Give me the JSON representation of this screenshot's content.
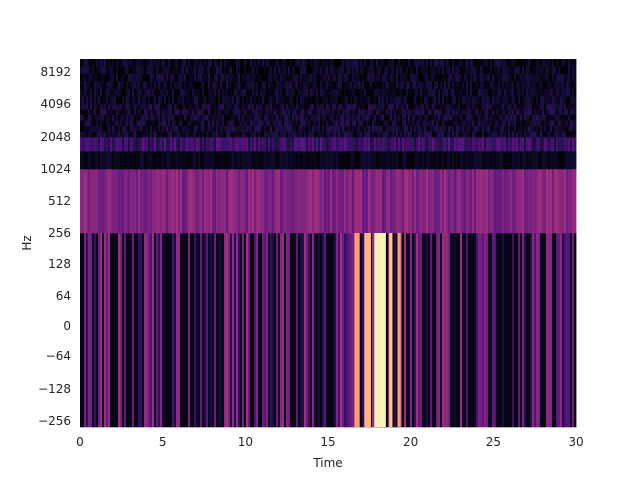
{
  "chart_data": {
    "type": "heatmap",
    "title": "",
    "xlabel": "Time",
    "ylabel": "Hz",
    "xlim": [
      0,
      30
    ],
    "x_ticks": [
      "0",
      "5",
      "10",
      "15",
      "20",
      "25",
      "30"
    ],
    "x_tick_values": [
      0,
      5,
      10,
      15,
      20,
      25,
      30
    ],
    "y_ticks": [
      "−256",
      "−128",
      "−64",
      "0",
      "64",
      "128",
      "256",
      "512",
      "1024",
      "2048",
      "4096",
      "8192"
    ],
    "y_scale": "symlog",
    "colormap": "magma",
    "grid": false,
    "bands": [
      {
        "from": "−256",
        "to": "256",
        "level": 0.25,
        "variability": 0.22
      },
      {
        "from": "256",
        "to": "1024",
        "level": 0.38,
        "variability": 0.08
      },
      {
        "from": "1024",
        "to": "1536",
        "level": 0.05,
        "variability": 0.04
      },
      {
        "from": "1536",
        "to": "2048",
        "level": 0.2,
        "variability": 0.08
      },
      {
        "from": "2048",
        "to": "4096",
        "level": 0.08,
        "variability": 0.08
      },
      {
        "from": "4096",
        "to": "16384",
        "level": 0.06,
        "variability": 0.07
      }
    ],
    "hotspots": [
      {
        "x_from": 16.6,
        "x_to": 16.9,
        "band": "−256–256",
        "level": 0.8
      },
      {
        "x_from": 17.2,
        "x_to": 17.6,
        "band": "−256–256",
        "level": 0.85
      },
      {
        "x_from": 17.8,
        "x_to": 18.5,
        "band": "−256–256",
        "level": 0.98
      },
      {
        "x_from": 18.7,
        "x_to": 18.9,
        "band": "−256–256",
        "level": 0.9
      },
      {
        "x_from": 19.2,
        "x_to": 19.4,
        "band": "−256–256",
        "level": 0.8
      }
    ]
  }
}
